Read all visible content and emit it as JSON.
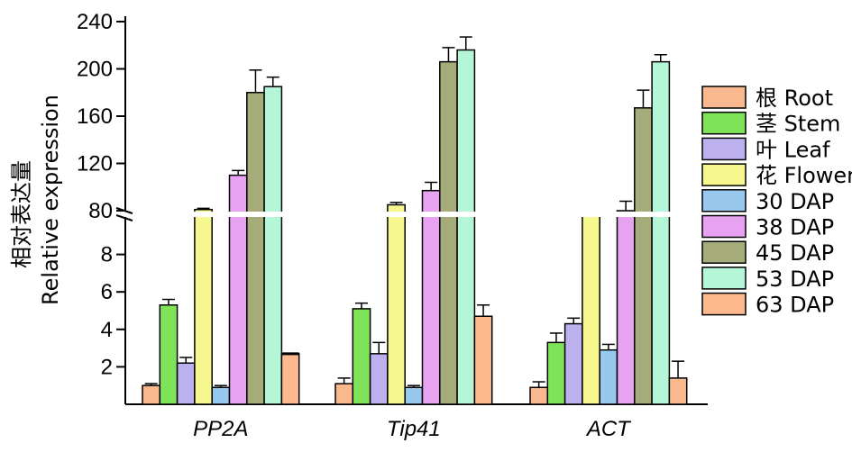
{
  "chart_data": {
    "type": "bar",
    "ylabel_cn": "相对表达量",
    "ylabel": "Relative expression",
    "categories": [
      "PP2A",
      "Tip41",
      "ACT"
    ],
    "y_axis": {
      "lower": {
        "range": [
          0,
          10
        ],
        "ticks": [
          "2",
          "4",
          "6",
          "8"
        ]
      },
      "upper": {
        "range": [
          80,
          240
        ],
        "ticks": [
          "80",
          "120",
          "160",
          "200",
          "240"
        ]
      },
      "broken": true
    },
    "legend_position": "right",
    "series": [
      {
        "name": "根 Root",
        "color": "#f9b88d",
        "values": [
          1.0,
          1.1,
          0.9
        ],
        "errors": [
          0.1,
          0.3,
          0.3
        ]
      },
      {
        "name": "茎 Stem",
        "color": "#7fe35a",
        "values": [
          5.3,
          5.1,
          3.3
        ],
        "errors": [
          0.3,
          0.3,
          0.5
        ]
      },
      {
        "name": "叶 Leaf",
        "color": "#bcb0ef",
        "values": [
          2.2,
          2.7,
          4.3
        ],
        "errors": [
          0.3,
          0.6,
          0.3
        ]
      },
      {
        "name": "花 Flower",
        "color": "#f7f78f",
        "values": [
          81,
          85,
          76
        ],
        "errors": [
          1,
          2,
          0
        ]
      },
      {
        "name": "30 DAP",
        "color": "#98c8ed",
        "values": [
          0.9,
          0.9,
          2.9
        ],
        "errors": [
          0.1,
          0.1,
          0.3
        ]
      },
      {
        "name": "38 DAP",
        "color": "#e8a2f2",
        "values": [
          110,
          97,
          80
        ],
        "errors": [
          4,
          7,
          8
        ]
      },
      {
        "name": "45 DAP",
        "color": "#a6ab7a",
        "values": [
          180,
          206,
          167
        ],
        "errors": [
          19,
          12,
          15
        ]
      },
      {
        "name": "53 DAP",
        "color": "#b5f5d8",
        "values": [
          185,
          216,
          206
        ],
        "errors": [
          8,
          11,
          6
        ]
      },
      {
        "name": "63 DAP",
        "color": "#fdb98e",
        "values": [
          2.7,
          4.7,
          1.4
        ],
        "errors": [
          0,
          0.6,
          0.9
        ]
      }
    ]
  }
}
